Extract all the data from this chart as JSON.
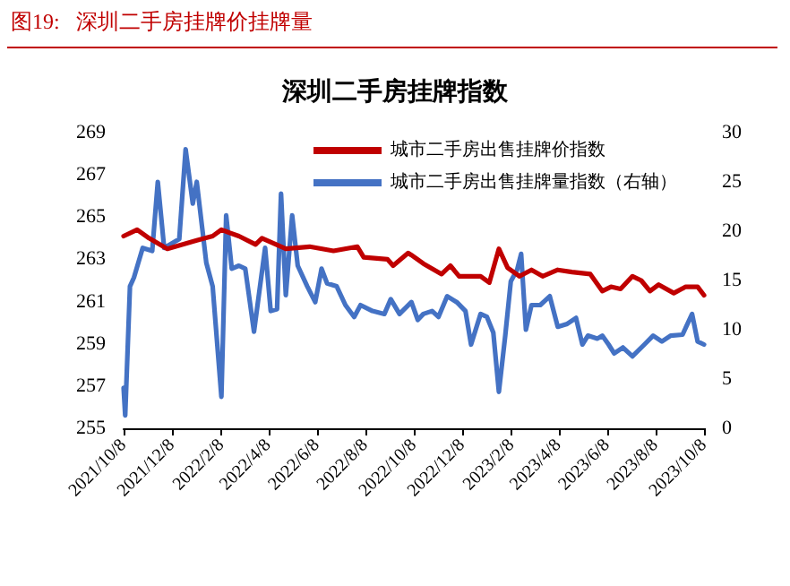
{
  "chart_data": {
    "type": "line",
    "title": "图19:   深圳二手房挂牌价挂牌量",
    "subtitle": "深圳二手房挂牌指数",
    "xlim": [
      "2021-10-08",
      "2023-10-08"
    ],
    "xticks": [
      {
        "value": "2021-10-08",
        "label": "2021/10/8"
      },
      {
        "value": "2021-12-08",
        "label": "2021/12/8"
      },
      {
        "value": "2022-02-08",
        "label": "2022/2/8"
      },
      {
        "value": "2022-04-08",
        "label": "2022/4/8"
      },
      {
        "value": "2022-06-08",
        "label": "2022/6/8"
      },
      {
        "value": "2022-08-08",
        "label": "2022/8/8"
      },
      {
        "value": "2022-10-08",
        "label": "2022/10/8"
      },
      {
        "value": "2022-12-08",
        "label": "2022/12/8"
      },
      {
        "value": "2023-02-08",
        "label": "2023/2/8"
      },
      {
        "value": "2023-04-08",
        "label": "2023/4/8"
      },
      {
        "value": "2023-06-08",
        "label": "2023/6/8"
      },
      {
        "value": "2023-08-08",
        "label": "2023/8/8"
      },
      {
        "value": "2023-10-08",
        "label": "2023/10/8"
      }
    ],
    "ylim": [
      255,
      269
    ],
    "yticks": [
      255,
      257,
      259,
      261,
      263,
      265,
      267,
      269
    ],
    "y2lim": [
      0,
      30
    ],
    "y2ticks": [
      0,
      5,
      10,
      15,
      20,
      25,
      30
    ],
    "grid": false,
    "legend": "top right",
    "marker": "none",
    "line_style": "solid",
    "series": [
      {
        "name": "城市二手房出售挂牌价指数",
        "color": "#c00000",
        "x": [
          "2021-10-08",
          "2021-10-25",
          "2021-11-09",
          "2021-12-02",
          "2022-01-08",
          "2022-01-28",
          "2022-02-08",
          "2022-03-02",
          "2022-03-23",
          "2022-03-31",
          "2022-04-30",
          "2022-05-30",
          "2022-06-29",
          "2022-07-29",
          "2022-08-06",
          "2022-09-05",
          "2022-09-12",
          "2022-10-01",
          "2022-10-05",
          "2022-10-20",
          "2022-11-12",
          "2022-11-23",
          "2022-12-04",
          "2022-12-31",
          "2023-01-11",
          "2023-01-23",
          "2023-02-03",
          "2023-02-18",
          "2023-03-05",
          "2023-03-19",
          "2023-04-07",
          "2023-04-25",
          "2023-05-18",
          "2023-06-02",
          "2023-06-13",
          "2023-06-25",
          "2023-07-10",
          "2023-07-21",
          "2023-08-01",
          "2023-08-12",
          "2023-08-31",
          "2023-09-15",
          "2023-09-30",
          "2023-10-08"
        ],
        "values": [
          264.1,
          264.4,
          264.0,
          263.5,
          263.9,
          264.1,
          264.4,
          264.1,
          263.7,
          264.0,
          263.5,
          263.6,
          263.4,
          263.6,
          263.1,
          263.0,
          262.7,
          263.3,
          263.2,
          262.8,
          262.3,
          262.7,
          262.2,
          262.2,
          261.9,
          263.5,
          262.6,
          262.2,
          262.5,
          262.2,
          262.5,
          262.4,
          262.3,
          261.5,
          261.7,
          261.6,
          262.2,
          262.0,
          261.5,
          261.8,
          261.4,
          261.7,
          261.7,
          261.3
        ]
      },
      {
        "name": "城市二手房出售挂牌量指数（右轴）",
        "color": "#4472c4",
        "axis": "y2",
        "x": [
          "2021-10-08",
          "2021-10-10",
          "2021-10-16",
          "2021-10-21",
          "2021-11-01",
          "2021-11-13",
          "2021-11-20",
          "2021-11-28",
          "2021-12-17",
          "2021-12-25",
          "2022-01-03",
          "2022-01-08",
          "2022-01-20",
          "2022-01-28",
          "2022-02-08",
          "2022-02-14",
          "2022-02-21",
          "2022-03-02",
          "2022-03-10",
          "2022-03-21",
          "2022-04-04",
          "2022-04-11",
          "2022-04-19",
          "2022-04-24",
          "2022-04-30",
          "2022-05-08",
          "2022-05-15",
          "2022-05-27",
          "2022-06-06",
          "2022-06-14",
          "2022-06-21",
          "2022-07-03",
          "2022-07-14",
          "2022-07-25",
          "2022-08-02",
          "2022-08-17",
          "2022-09-01",
          "2022-09-09",
          "2022-09-20",
          "2022-10-05",
          "2022-10-13",
          "2022-10-20",
          "2022-10-31",
          "2022-11-08",
          "2022-11-19",
          "2022-12-01",
          "2022-12-12",
          "2022-12-19",
          "2022-12-31",
          "2023-01-08",
          "2023-01-16",
          "2023-01-23",
          "2023-01-31",
          "2023-02-07",
          "2023-02-15",
          "2023-02-20",
          "2023-02-26",
          "2023-03-05",
          "2023-03-16",
          "2023-03-28",
          "2023-04-07",
          "2023-04-19",
          "2023-04-30",
          "2023-05-08",
          "2023-05-15",
          "2023-05-27",
          "2023-06-02",
          "2023-06-10",
          "2023-06-17",
          "2023-06-28",
          "2023-07-10",
          "2023-07-25",
          "2023-08-05",
          "2023-08-16",
          "2023-08-27",
          "2023-09-11",
          "2023-09-23",
          "2023-09-30",
          "2023-10-08"
        ],
        "values": [
          4.1,
          1.3,
          14.4,
          15.3,
          18.3,
          18.0,
          25.0,
          18.3,
          19.2,
          28.3,
          22.8,
          25.0,
          16.8,
          14.4,
          3.2,
          21.6,
          16.2,
          16.5,
          16.2,
          9.8,
          18.3,
          11.9,
          12.1,
          23.8,
          13.5,
          21.6,
          16.5,
          14.4,
          12.8,
          16.2,
          14.7,
          14.4,
          12.5,
          11.3,
          12.5,
          11.9,
          11.6,
          13.1,
          11.6,
          12.8,
          11.0,
          11.6,
          11.9,
          11.3,
          13.4,
          12.8,
          11.9,
          8.5,
          11.6,
          11.3,
          9.7,
          3.7,
          9.4,
          14.9,
          16.1,
          17.7,
          10.0,
          12.5,
          12.5,
          13.4,
          10.3,
          10.6,
          11.2,
          8.5,
          9.4,
          9.1,
          9.4,
          8.5,
          7.6,
          8.2,
          7.3,
          8.5,
          9.4,
          8.8,
          9.4,
          9.5,
          11.6,
          8.8,
          8.5
        ]
      }
    ]
  }
}
